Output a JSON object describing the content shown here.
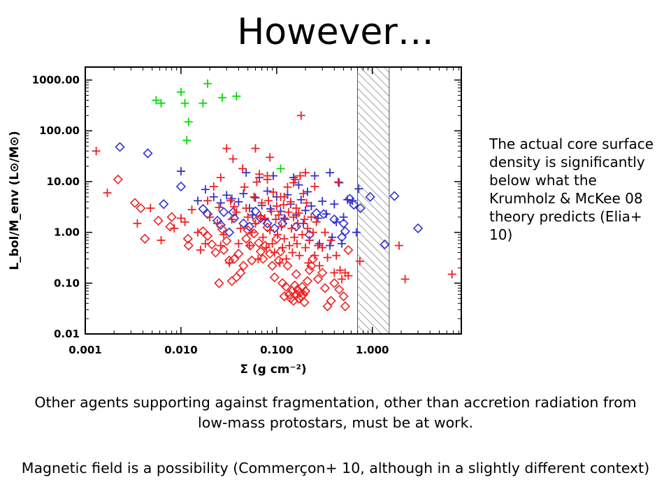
{
  "slide": {
    "title": "However…",
    "side_note": "The actual core surface density is significantly below what the Krumholz & McKee 08 theory predicts (Elia+ 10)",
    "bottom_text_1": "Other agents supporting against fragmentation, other than accretion radiation from low-mass protostars, must be at work.",
    "bottom_text_2": "Magnetic field is a possibility (Commerçon+ 10, although in a slightly different context)"
  },
  "chart_data": {
    "type": "scatter",
    "xlabel": "Σ (g cm⁻²)",
    "ylabel": "L_bol/M_env (L⊙/M⊙)",
    "xscale": "log",
    "yscale": "log",
    "xlim": [
      0.001,
      8.5
    ],
    "ylim": [
      0.01,
      1800
    ],
    "xticks": [
      "0.001",
      "0.010",
      "0.100",
      "1.000"
    ],
    "yticks": [
      "0.01",
      "0.10",
      "1.00",
      "10.00",
      "100.00",
      "1000.00"
    ],
    "grid": false,
    "shaded_band": {
      "x_range": [
        0.7,
        1.5
      ],
      "style": "hatched"
    },
    "series": [
      {
        "marker": "plus",
        "color": "#00dd00",
        "points": [
          [
            0.0055,
            400
          ],
          [
            0.0062,
            350
          ],
          [
            0.01,
            580
          ],
          [
            0.011,
            350
          ],
          [
            0.012,
            150
          ],
          [
            0.0115,
            65
          ],
          [
            0.017,
            350
          ],
          [
            0.019,
            850
          ],
          [
            0.027,
            450
          ],
          [
            0.038,
            480
          ],
          [
            0.11,
            18
          ]
        ]
      },
      {
        "marker": "diamond",
        "color": "#3333cc",
        "points": [
          [
            0.0023,
            48
          ],
          [
            0.0045,
            36
          ],
          [
            0.0066,
            3.6
          ],
          [
            0.01,
            8.0
          ],
          [
            0.017,
            2.9
          ],
          [
            0.019,
            2.3
          ],
          [
            0.024,
            1.7
          ],
          [
            0.026,
            1.4
          ],
          [
            0.028,
            2.5
          ],
          [
            0.032,
            1.0
          ],
          [
            0.035,
            2.5
          ],
          [
            0.036,
            1.9
          ],
          [
            0.045,
            1.5
          ],
          [
            0.052,
            1.3
          ],
          [
            0.06,
            2.6
          ],
          [
            0.068,
            1.9
          ],
          [
            0.08,
            1.5
          ],
          [
            0.095,
            1.2
          ],
          [
            0.115,
            1.5
          ],
          [
            0.16,
            1.3
          ],
          [
            0.22,
            0.9
          ],
          [
            0.26,
            2.4
          ],
          [
            0.31,
            2.3
          ],
          [
            0.4,
            1.8
          ],
          [
            0.48,
            0.8
          ],
          [
            0.5,
            1.5
          ],
          [
            0.52,
            1.05
          ],
          [
            0.58,
            4.6
          ],
          [
            0.64,
            3.5
          ],
          [
            0.75,
            3.0
          ],
          [
            0.95,
            5.0
          ],
          [
            1.35,
            0.58
          ],
          [
            1.7,
            5.2
          ],
          [
            3.0,
            1.2
          ]
        ]
      },
      {
        "marker": "plus",
        "color": "#3333cc",
        "points": [
          [
            0.01,
            16
          ],
          [
            0.015,
            4.2
          ],
          [
            0.018,
            7.0
          ],
          [
            0.022,
            5.0
          ],
          [
            0.026,
            3.8
          ],
          [
            0.03,
            5.4
          ],
          [
            0.034,
            4.6
          ],
          [
            0.04,
            4.0
          ],
          [
            0.045,
            5.8
          ],
          [
            0.048,
            15
          ],
          [
            0.052,
            3.0
          ],
          [
            0.056,
            2.2
          ],
          [
            0.06,
            4.8
          ],
          [
            0.066,
            12
          ],
          [
            0.07,
            3.4
          ],
          [
            0.075,
            1.8
          ],
          [
            0.08,
            6.5
          ],
          [
            0.086,
            2.9
          ],
          [
            0.092,
            13
          ],
          [
            0.1,
            5.0
          ],
          [
            0.11,
            2.6
          ],
          [
            0.12,
            1.9
          ],
          [
            0.13,
            5.5
          ],
          [
            0.14,
            3.6
          ],
          [
            0.15,
            12
          ],
          [
            0.16,
            2.2
          ],
          [
            0.17,
            8.6
          ],
          [
            0.18,
            4.4
          ],
          [
            0.19,
            1.5
          ],
          [
            0.2,
            2.7
          ],
          [
            0.21,
            6.3
          ],
          [
            0.22,
            0.7
          ],
          [
            0.23,
            3.3
          ],
          [
            0.25,
            13
          ],
          [
            0.27,
            1.9
          ],
          [
            0.3,
            4.1
          ],
          [
            0.33,
            2.3
          ],
          [
            0.36,
            15
          ],
          [
            0.38,
            0.8
          ],
          [
            0.4,
            3.6
          ],
          [
            0.42,
            1.6
          ],
          [
            0.45,
            9.5
          ],
          [
            0.48,
            0.6
          ],
          [
            0.5,
            2.0
          ],
          [
            0.55,
            4.4
          ],
          [
            0.62,
            4.2
          ],
          [
            0.68,
            1.0
          ],
          [
            0.72,
            7.2
          ],
          [
            0.36,
            0.55
          ],
          [
            0.28,
            0.6
          ]
        ]
      },
      {
        "marker": "plus",
        "color": "#ee2222",
        "points": [
          [
            0.0013,
            40
          ],
          [
            0.0017,
            6
          ],
          [
            0.0035,
            1.5
          ],
          [
            0.0048,
            3.0
          ],
          [
            0.0062,
            0.7
          ],
          [
            0.0085,
            1.2
          ],
          [
            0.01,
            1.9
          ],
          [
            0.011,
            1.6
          ],
          [
            0.013,
            2.8
          ],
          [
            0.015,
            1.0
          ],
          [
            0.016,
            0.45
          ],
          [
            0.018,
            0.6
          ],
          [
            0.019,
            4.2
          ],
          [
            0.02,
            2.0
          ],
          [
            0.022,
            8.0
          ],
          [
            0.024,
            1.5
          ],
          [
            0.025,
            3.1
          ],
          [
            0.026,
            0.55
          ],
          [
            0.028,
            0.9
          ],
          [
            0.03,
            45
          ],
          [
            0.032,
            0.25
          ],
          [
            0.033,
            4.2
          ],
          [
            0.034,
            1.8
          ],
          [
            0.036,
            3.2
          ],
          [
            0.038,
            2.5
          ],
          [
            0.04,
            0.6
          ],
          [
            0.042,
            1.2
          ],
          [
            0.044,
            18
          ],
          [
            0.046,
            7.8
          ],
          [
            0.048,
            3.0
          ],
          [
            0.05,
            2.0
          ],
          [
            0.052,
            0.55
          ],
          [
            0.055,
            1.0
          ],
          [
            0.058,
            5.0
          ],
          [
            0.06,
            1.5
          ],
          [
            0.062,
            9.8
          ],
          [
            0.064,
            0.3
          ],
          [
            0.066,
            14
          ],
          [
            0.068,
            2.1
          ],
          [
            0.07,
            3.8
          ],
          [
            0.072,
            0.8
          ],
          [
            0.075,
            1.9
          ],
          [
            0.078,
            0.5
          ],
          [
            0.08,
            13
          ],
          [
            0.082,
            4.2
          ],
          [
            0.085,
            1.1
          ],
          [
            0.088,
            2.6
          ],
          [
            0.09,
            0.6
          ],
          [
            0.092,
            6.2
          ],
          [
            0.095,
            0.4
          ],
          [
            0.098,
            1.8
          ],
          [
            0.1,
            3.3
          ],
          [
            0.102,
            0.9
          ],
          [
            0.105,
            2.2
          ],
          [
            0.108,
            0.25
          ],
          [
            0.11,
            5.0
          ],
          [
            0.112,
            1.3
          ],
          [
            0.115,
            0.5
          ],
          [
            0.118,
            3.5
          ],
          [
            0.12,
            0.75
          ],
          [
            0.123,
            1.8
          ],
          [
            0.126,
            0.3
          ],
          [
            0.13,
            7.8
          ],
          [
            0.133,
            2.5
          ],
          [
            0.136,
            0.55
          ],
          [
            0.14,
            4.0
          ],
          [
            0.143,
            1.2
          ],
          [
            0.146,
            0.4
          ],
          [
            0.15,
            2.0
          ],
          [
            0.153,
            0.8
          ],
          [
            0.156,
            11
          ],
          [
            0.16,
            3.0
          ],
          [
            0.163,
            0.6
          ],
          [
            0.166,
            1.5
          ],
          [
            0.17,
            2.4
          ],
          [
            0.173,
            0.35
          ],
          [
            0.176,
            13
          ],
          [
            0.18,
            200
          ],
          [
            0.185,
            0.9
          ],
          [
            0.19,
            5.8
          ],
          [
            0.195,
            1.8
          ],
          [
            0.2,
            0.5
          ],
          [
            0.205,
            3.8
          ],
          [
            0.21,
            1.2
          ],
          [
            0.215,
            0.25
          ],
          [
            0.22,
            0.7
          ],
          [
            0.23,
            2.0
          ],
          [
            0.24,
            1.0
          ],
          [
            0.25,
            0.35
          ],
          [
            0.26,
            1.6
          ],
          [
            0.27,
            0.55
          ],
          [
            0.28,
            0.22
          ],
          [
            0.3,
            0.5
          ],
          [
            0.32,
            1.0
          ],
          [
            0.34,
            0.32
          ],
          [
            0.37,
            0.7
          ],
          [
            0.4,
            0.16
          ],
          [
            0.42,
            0.35
          ],
          [
            0.44,
            9.8
          ],
          [
            0.46,
            0.18
          ],
          [
            0.48,
            0.12
          ],
          [
            0.52,
            0.16
          ],
          [
            0.56,
            0.14
          ],
          [
            0.74,
            0.27
          ],
          [
            1.9,
            0.55
          ],
          [
            2.2,
            0.12
          ],
          [
            6.8,
            0.15
          ],
          [
            0.06,
            45
          ],
          [
            0.026,
            12
          ],
          [
            0.085,
            30
          ],
          [
            0.12,
            5.0
          ],
          [
            0.2,
            15
          ],
          [
            0.035,
            28
          ],
          [
            0.15,
            9.5
          ],
          [
            0.08,
            11
          ],
          [
            0.25,
            8.0
          ]
        ]
      },
      {
        "marker": "diamond",
        "color": "#ee2222",
        "points": [
          [
            0.0022,
            11
          ],
          [
            0.0033,
            3.8
          ],
          [
            0.0038,
            3.0
          ],
          [
            0.0042,
            0.75
          ],
          [
            0.0058,
            1.7
          ],
          [
            0.0077,
            1.3
          ],
          [
            0.008,
            2.0
          ],
          [
            0.0118,
            0.75
          ],
          [
            0.012,
            0.55
          ],
          [
            0.017,
            1.05
          ],
          [
            0.019,
            0.85
          ],
          [
            0.021,
            0.58
          ],
          [
            0.023,
            0.4
          ],
          [
            0.025,
            0.1
          ],
          [
            0.027,
            1.15
          ],
          [
            0.028,
            0.45
          ],
          [
            0.03,
            0.68
          ],
          [
            0.032,
            0.28
          ],
          [
            0.034,
            0.11
          ],
          [
            0.036,
            0.3
          ],
          [
            0.038,
            0.13
          ],
          [
            0.04,
            0.38
          ],
          [
            0.042,
            0.16
          ],
          [
            0.045,
            0.22
          ],
          [
            0.048,
            0.75
          ],
          [
            0.05,
            1.1
          ],
          [
            0.053,
            0.55
          ],
          [
            0.055,
            0.28
          ],
          [
            0.058,
            0.95
          ],
          [
            0.062,
            1.75
          ],
          [
            0.065,
            0.62
          ],
          [
            0.068,
            0.42
          ],
          [
            0.072,
            0.3
          ],
          [
            0.076,
            0.55
          ],
          [
            0.08,
            1.25
          ],
          [
            0.085,
            0.38
          ],
          [
            0.09,
            0.22
          ],
          [
            0.095,
            0.13
          ],
          [
            0.1,
            0.75
          ],
          [
            0.105,
            0.28
          ],
          [
            0.11,
            0.42
          ],
          [
            0.115,
            0.1
          ],
          [
            0.12,
            0.055
          ],
          [
            0.125,
            0.085
          ],
          [
            0.13,
            0.22
          ],
          [
            0.135,
            0.06
          ],
          [
            0.14,
            0.05
          ],
          [
            0.145,
            0.07
          ],
          [
            0.15,
            0.045
          ],
          [
            0.155,
            0.09
          ],
          [
            0.16,
            0.06
          ],
          [
            0.165,
            0.075
          ],
          [
            0.17,
            0.05
          ],
          [
            0.175,
            0.065
          ],
          [
            0.18,
            0.055
          ],
          [
            0.185,
            0.085
          ],
          [
            0.19,
            0.06
          ],
          [
            0.195,
            0.042
          ],
          [
            0.2,
            0.07
          ],
          [
            0.21,
            0.11
          ],
          [
            0.22,
            0.18
          ],
          [
            0.24,
            0.3
          ],
          [
            0.27,
            0.12
          ],
          [
            0.3,
            0.16
          ],
          [
            0.32,
            0.08
          ],
          [
            0.34,
            0.035
          ],
          [
            0.37,
            0.045
          ],
          [
            0.4,
            0.1
          ],
          [
            0.45,
            0.075
          ],
          [
            0.5,
            0.055
          ],
          [
            0.52,
            0.035
          ],
          [
            0.56,
            0.45
          ],
          [
            0.23,
            0.22
          ],
          [
            0.16,
            0.15
          ]
        ]
      }
    ]
  }
}
